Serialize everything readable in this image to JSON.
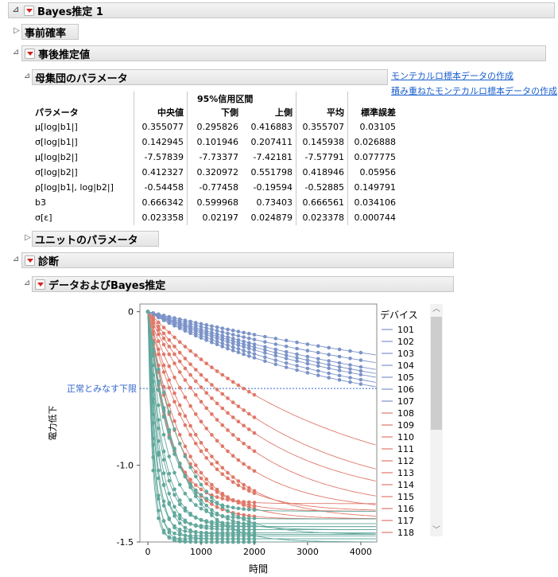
{
  "report": {
    "title": "Bayes推定 1",
    "prior_section": "事前確率",
    "posterior_section": "事後推定値",
    "population_section": "母集団のパラメータ",
    "unit_section": "ユニットのパラメータ",
    "diagnostics_section": "診断",
    "data_section": "データおよびBayes推定"
  },
  "links": {
    "mc_sample": "モンテカルロ標本データの作成",
    "stacked_mc_sample": "積み重ねたモンテカルロ標本データの作成"
  },
  "table": {
    "ci_header": "95%信用区間",
    "columns": [
      "パラメータ",
      "中央値",
      "下側",
      "上側",
      "平均",
      "標準誤差"
    ],
    "rows": [
      [
        "μ[log|b1|]",
        "0.355077",
        "0.295826",
        "0.416883",
        "0.355707",
        "0.03105"
      ],
      [
        "σ[log|b1|]",
        "0.142945",
        "0.101946",
        "0.207411",
        "0.145938",
        "0.026888"
      ],
      [
        "μ[log|b2|]",
        "-7.57839",
        "-7.73377",
        "-7.42181",
        "-7.57791",
        "0.077775"
      ],
      [
        "σ[log|b2|]",
        "0.412327",
        "0.320972",
        "0.551798",
        "0.418946",
        "0.05956"
      ],
      [
        "ρ[log|b1|, log|b2|]",
        "-0.54458",
        "-0.77458",
        "-0.19594",
        "-0.52885",
        "0.149791"
      ],
      [
        "b3",
        "0.666342",
        "0.599968",
        "0.73403",
        "0.666561",
        "0.034106"
      ],
      [
        "σ[ε]",
        "0.023358",
        "0.02197",
        "0.024879",
        "0.023378",
        "0.000744"
      ]
    ]
  },
  "colors": {
    "blue": "#7b93c8",
    "red": "#e07868",
    "teal": "#62a89c",
    "reference": "#3366cc"
  },
  "chart_data": {
    "type": "line",
    "xlabel": "時間",
    "ylabel": "電力低下",
    "xlim": [
      -150,
      4300
    ],
    "ylim": [
      -1.5,
      0.05
    ],
    "x_ticks": [
      0,
      1000,
      2000,
      3000,
      4000
    ],
    "x_tick_labels": [
      "0",
      "1000",
      "2000",
      "3000",
      "4000"
    ],
    "y_ticks": [
      0,
      -1.0,
      -1.5
    ],
    "y_tick_labels": [
      "0",
      "-1.0",
      "-1.5"
    ],
    "reference_line": {
      "y": -0.5,
      "label": "正常とみなす下限"
    },
    "measurement_times": [
      0,
      100,
      200,
      300,
      400,
      500,
      600,
      700,
      800,
      900,
      1000,
      1100,
      1200,
      1300,
      1400,
      1500,
      1600,
      1700,
      1800,
      1900,
      2000
    ],
    "legend_title": "デバイス",
    "legend_items": [
      "101",
      "102",
      "103",
      "104",
      "105",
      "106",
      "107",
      "108",
      "109",
      "110",
      "111",
      "112",
      "113",
      "114",
      "115",
      "116",
      "117",
      "118"
    ],
    "device_groups": [
      {
        "group": "blue",
        "ids": [
          "101",
          "102",
          "103",
          "104",
          "105",
          "106",
          "107"
        ]
      },
      {
        "group": "red",
        "ids": [
          "108",
          "109",
          "110",
          "111",
          "112",
          "113",
          "114",
          "115",
          "116",
          "117",
          "118"
        ]
      }
    ],
    "series": [
      {
        "group": "blue",
        "a": 0.7,
        "k": 0.00012
      },
      {
        "group": "blue",
        "a": 0.7,
        "k": 0.00015
      },
      {
        "group": "blue",
        "a": 0.7,
        "k": 0.00018
      },
      {
        "group": "blue",
        "a": 0.7,
        "k": 0.0002
      },
      {
        "group": "blue",
        "a": 0.7,
        "k": 0.00022
      },
      {
        "group": "blue",
        "a": 0.7,
        "k": 0.00025
      },
      {
        "group": "blue",
        "a": 0.7,
        "k": 0.00028
      },
      {
        "group": "red",
        "a": 1.2,
        "k": 0.0003
      },
      {
        "group": "red",
        "a": 1.25,
        "k": 0.0004
      },
      {
        "group": "red",
        "a": 1.25,
        "k": 0.0005
      },
      {
        "group": "red",
        "a": 1.3,
        "k": 0.0006
      },
      {
        "group": "red",
        "a": 1.3,
        "k": 0.0008
      },
      {
        "group": "red",
        "a": 1.35,
        "k": 0.001
      },
      {
        "group": "red",
        "a": 1.3,
        "k": 0.0012
      },
      {
        "group": "red",
        "a": 1.35,
        "k": 0.0015
      },
      {
        "group": "red",
        "a": 1.3,
        "k": 0.0018
      },
      {
        "group": "red",
        "a": 1.35,
        "k": 0.0022
      },
      {
        "group": "red",
        "a": 1.25,
        "k": 0.0026
      },
      {
        "group": "teal",
        "a": 1.3,
        "k": 0.0025
      },
      {
        "group": "teal",
        "a": 1.35,
        "k": 0.003
      },
      {
        "group": "teal",
        "a": 1.4,
        "k": 0.0035
      },
      {
        "group": "teal",
        "a": 1.38,
        "k": 0.004
      },
      {
        "group": "teal",
        "a": 1.42,
        "k": 0.0045
      },
      {
        "group": "teal",
        "a": 1.45,
        "k": 0.005
      },
      {
        "group": "teal",
        "a": 1.4,
        "k": 0.0055
      },
      {
        "group": "teal",
        "a": 1.48,
        "k": 0.006
      },
      {
        "group": "teal",
        "a": 1.44,
        "k": 0.007
      },
      {
        "group": "teal",
        "a": 1.5,
        "k": 0.008
      },
      {
        "group": "teal",
        "a": 1.46,
        "k": 0.009
      },
      {
        "group": "teal",
        "a": 1.5,
        "k": 0.01
      },
      {
        "group": "teal",
        "a": 1.48,
        "k": 0.012
      },
      {
        "group": "teal",
        "a": 1.45,
        "k": 0.0015
      },
      {
        "group": "teal",
        "a": 1.5,
        "k": 0.0018
      },
      {
        "group": "teal",
        "a": 1.42,
        "k": 0.002
      }
    ]
  }
}
